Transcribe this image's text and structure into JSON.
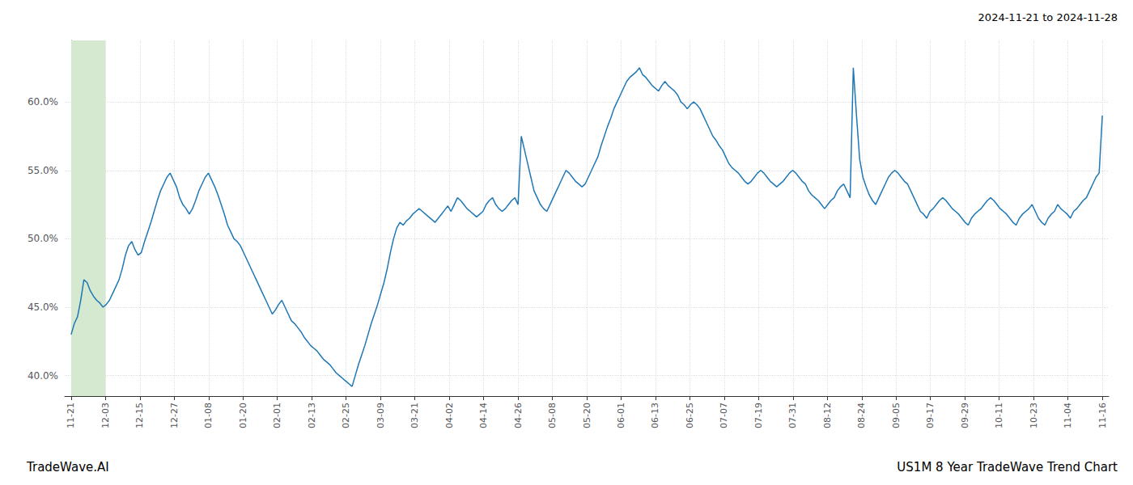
{
  "chart_data": {
    "type": "line",
    "title": "US1M 8 Year TradeWave Trend Chart",
    "subtitle": "2024-11-21 to 2024-11-28",
    "annotations": [
      "TradeWave.AI"
    ],
    "color": "#1f77b4",
    "grid": true,
    "highlight": {
      "from": 0,
      "to": 10.766666666666667,
      "color": "#d5e8d0"
    },
    "xlim": [
      -2,
      325
    ],
    "xticks": [
      {
        "value": 0,
        "label": "11-21"
      },
      {
        "value": 10.766666666666667,
        "label": "12-03"
      },
      {
        "value": 21.533333333333335,
        "label": "12-15"
      },
      {
        "value": 32.3,
        "label": "12-27"
      },
      {
        "value": 43.06666666666667,
        "label": "01-08"
      },
      {
        "value": 53.833333333333336,
        "label": "01-20"
      },
      {
        "value": 64.6,
        "label": "02-01"
      },
      {
        "value": 75.36666666666667,
        "label": "02-13"
      },
      {
        "value": 86.13333333333334,
        "label": "02-25"
      },
      {
        "value": 96.9,
        "label": "03-09"
      },
      {
        "value": 107.66666666666667,
        "label": "03-21"
      },
      {
        "value": 118.43333333333334,
        "label": "04-02"
      },
      {
        "value": 129.2,
        "label": "04-14"
      },
      {
        "value": 139.96666666666667,
        "label": "04-26"
      },
      {
        "value": 150.73333333333335,
        "label": "05-08"
      },
      {
        "value": 161.5,
        "label": "05-20"
      },
      {
        "value": 172.26666666666668,
        "label": "06-01"
      },
      {
        "value": 183.03333333333333,
        "label": "06-13"
      },
      {
        "value": 193.8,
        "label": "06-25"
      },
      {
        "value": 204.56666666666666,
        "label": "07-07"
      },
      {
        "value": 215.33333333333334,
        "label": "07-19"
      },
      {
        "value": 226.1,
        "label": "07-31"
      },
      {
        "value": 236.86666666666667,
        "label": "08-12"
      },
      {
        "value": 247.63333333333333,
        "label": "08-24"
      },
      {
        "value": 258.4,
        "label": "09-05"
      },
      {
        "value": 269.1666666666667,
        "label": "09-17"
      },
      {
        "value": 279.93333333333334,
        "label": "09-29"
      },
      {
        "value": 290.7,
        "label": "10-11"
      },
      {
        "value": 301.46666666666664,
        "label": "10-23"
      },
      {
        "value": 312.23333333333335,
        "label": "11-04"
      },
      {
        "value": 323,
        "label": "11-16"
      }
    ],
    "ylim": [
      0.385,
      0.645
    ],
    "yticks": [
      {
        "value": 0.4,
        "label": "40.0%"
      },
      {
        "value": 0.45,
        "label": "45.0%"
      },
      {
        "value": 0.5,
        "label": "50.0%"
      },
      {
        "value": 0.55,
        "label": "55.0%"
      },
      {
        "value": 0.6,
        "label": "60.0%"
      }
    ],
    "values": [
      0.43,
      0.438,
      0.443,
      0.455,
      0.47,
      0.468,
      0.462,
      0.458,
      0.455,
      0.453,
      0.45,
      0.452,
      0.455,
      0.46,
      0.465,
      0.47,
      0.478,
      0.488,
      0.495,
      0.498,
      0.492,
      0.488,
      0.49,
      0.498,
      0.505,
      0.512,
      0.52,
      0.528,
      0.535,
      0.54,
      0.545,
      0.548,
      0.543,
      0.538,
      0.53,
      0.525,
      0.522,
      0.518,
      0.522,
      0.528,
      0.535,
      0.54,
      0.545,
      0.548,
      0.543,
      0.538,
      0.532,
      0.525,
      0.518,
      0.51,
      0.505,
      0.5,
      0.498,
      0.495,
      0.49,
      0.485,
      0.48,
      0.475,
      0.47,
      0.465,
      0.46,
      0.455,
      0.45,
      0.445,
      0.448,
      0.452,
      0.455,
      0.45,
      0.445,
      0.44,
      0.438,
      0.435,
      0.432,
      0.428,
      0.425,
      0.422,
      0.42,
      0.418,
      0.415,
      0.412,
      0.41,
      0.408,
      0.405,
      0.402,
      0.4,
      0.398,
      0.396,
      0.394,
      0.392,
      0.4,
      0.408,
      0.415,
      0.422,
      0.43,
      0.438,
      0.445,
      0.452,
      0.46,
      0.468,
      0.478,
      0.49,
      0.5,
      0.508,
      0.512,
      0.51,
      0.513,
      0.515,
      0.518,
      0.52,
      0.522,
      0.52,
      0.518,
      0.516,
      0.514,
      0.512,
      0.515,
      0.518,
      0.521,
      0.524,
      0.52,
      0.525,
      0.53,
      0.528,
      0.525,
      0.522,
      0.52,
      0.518,
      0.516,
      0.518,
      0.52,
      0.525,
      0.528,
      0.53,
      0.525,
      0.522,
      0.52,
      0.522,
      0.525,
      0.528,
      0.53,
      0.525,
      0.575,
      0.565,
      0.555,
      0.545,
      0.535,
      0.53,
      0.525,
      0.522,
      0.52,
      0.525,
      0.53,
      0.535,
      0.54,
      0.545,
      0.55,
      0.548,
      0.545,
      0.542,
      0.54,
      0.538,
      0.54,
      0.545,
      0.55,
      0.555,
      0.56,
      0.568,
      0.575,
      0.582,
      0.588,
      0.595,
      0.6,
      0.605,
      0.61,
      0.615,
      0.618,
      0.62,
      0.622,
      0.625,
      0.62,
      0.618,
      0.615,
      0.612,
      0.61,
      0.608,
      0.612,
      0.615,
      0.612,
      0.61,
      0.608,
      0.605,
      0.6,
      0.598,
      0.595,
      0.598,
      0.6,
      0.598,
      0.595,
      0.59,
      0.585,
      0.58,
      0.575,
      0.572,
      0.568,
      0.565,
      0.56,
      0.555,
      0.552,
      0.55,
      0.548,
      0.545,
      0.542,
      0.54,
      0.542,
      0.545,
      0.548,
      0.55,
      0.548,
      0.545,
      0.542,
      0.54,
      0.538,
      0.54,
      0.542,
      0.545,
      0.548,
      0.55,
      0.548,
      0.545,
      0.542,
      0.54,
      0.535,
      0.532,
      0.53,
      0.528,
      0.525,
      0.522,
      0.525,
      0.528,
      0.53,
      0.535,
      0.538,
      0.54,
      0.535,
      0.53,
      0.625,
      0.59,
      0.558,
      0.545,
      0.538,
      0.532,
      0.528,
      0.525,
      0.53,
      0.535,
      0.54,
      0.545,
      0.548,
      0.55,
      0.548,
      0.545,
      0.542,
      0.54,
      0.535,
      0.53,
      0.525,
      0.52,
      0.518,
      0.515,
      0.52,
      0.522,
      0.525,
      0.528,
      0.53,
      0.528,
      0.525,
      0.522,
      0.52,
      0.518,
      0.515,
      0.512,
      0.51,
      0.515,
      0.518,
      0.52,
      0.522,
      0.525,
      0.528,
      0.53,
      0.528,
      0.525,
      0.522,
      0.52,
      0.518,
      0.515,
      0.512,
      0.51,
      0.515,
      0.518,
      0.52,
      0.522,
      0.525,
      0.52,
      0.515,
      0.512,
      0.51,
      0.515,
      0.518,
      0.52,
      0.525,
      0.522,
      0.52,
      0.518,
      0.515,
      0.52,
      0.522,
      0.525,
      0.528,
      0.53,
      0.535,
      0.54,
      0.545,
      0.548,
      0.59
    ]
  }
}
